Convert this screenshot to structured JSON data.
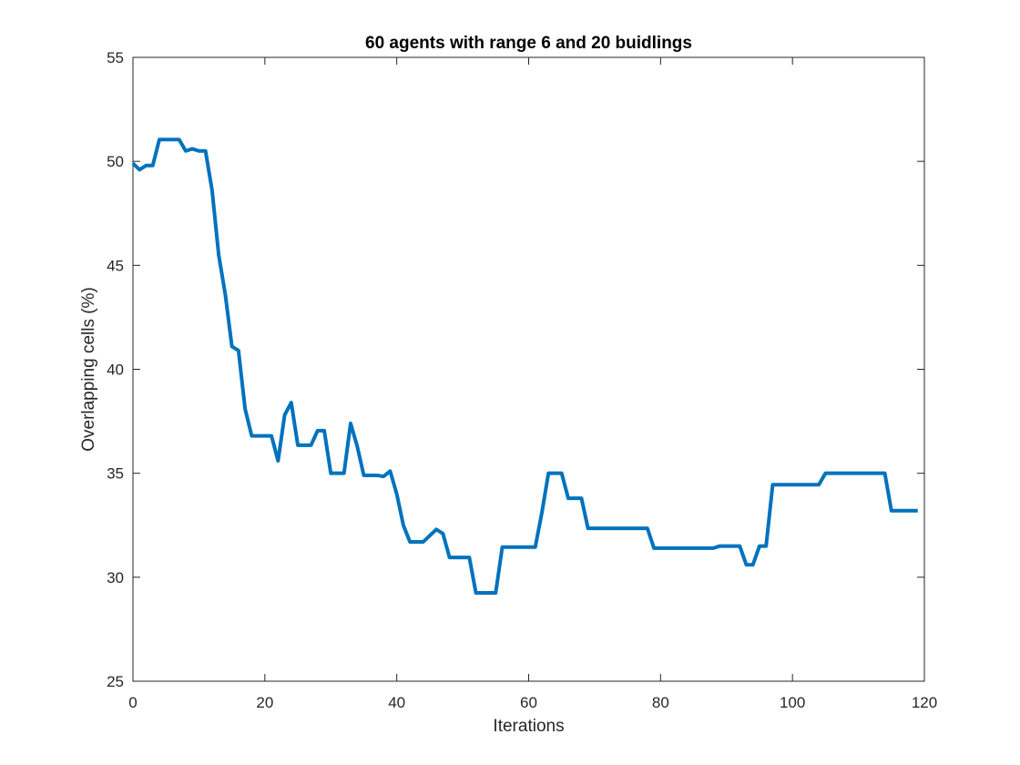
{
  "chart_data": {
    "type": "line",
    "title": "60 agents with range 6 and 20 buidlings",
    "xlabel": "Iterations",
    "ylabel": "Overlapping cells (%)",
    "xlim": [
      0,
      120
    ],
    "ylim": [
      25,
      55
    ],
    "xticks": [
      0,
      20,
      40,
      60,
      80,
      100,
      120
    ],
    "yticks": [
      25,
      30,
      35,
      40,
      45,
      50,
      55
    ],
    "grid": false,
    "legend": false,
    "series": [
      {
        "color": "#0072BD",
        "x": [
          0,
          1,
          2,
          3,
          4,
          5,
          6,
          7,
          8,
          9,
          10,
          11,
          12,
          13,
          14,
          15,
          16,
          17,
          18,
          19,
          20,
          21,
          22,
          23,
          24,
          25,
          26,
          27,
          28,
          29,
          30,
          31,
          32,
          33,
          34,
          35,
          36,
          37,
          38,
          39,
          40,
          41,
          42,
          43,
          44,
          45,
          46,
          47,
          48,
          49,
          50,
          51,
          52,
          53,
          54,
          55,
          56,
          57,
          58,
          59,
          60,
          61,
          62,
          63,
          64,
          65,
          66,
          67,
          68,
          69,
          70,
          71,
          72,
          73,
          74,
          75,
          76,
          77,
          78,
          79,
          80,
          81,
          82,
          83,
          84,
          85,
          86,
          87,
          88,
          89,
          90,
          91,
          92,
          93,
          94,
          95,
          96,
          97,
          98,
          99,
          100,
          101,
          102,
          103,
          104,
          105,
          106,
          107,
          108,
          109,
          110,
          111,
          112,
          113,
          114,
          115,
          116,
          117,
          118,
          119
        ],
        "y": [
          49.9,
          49.6,
          49.8,
          49.8,
          51.05,
          51.05,
          51.05,
          51.05,
          50.5,
          50.6,
          50.5,
          50.5,
          48.6,
          45.5,
          43.6,
          41.1,
          40.9,
          38.1,
          36.8,
          36.8,
          36.8,
          36.8,
          35.6,
          37.8,
          38.4,
          36.35,
          36.35,
          36.35,
          37.05,
          37.05,
          35.0,
          35.0,
          35.0,
          37.4,
          36.3,
          34.9,
          34.9,
          34.9,
          34.85,
          35.1,
          34.0,
          32.5,
          31.7,
          31.7,
          31.7,
          32.0,
          32.3,
          32.1,
          30.95,
          30.95,
          30.95,
          30.95,
          29.25,
          29.25,
          29.25,
          29.25,
          31.45,
          31.45,
          31.45,
          31.45,
          31.45,
          31.45,
          33.1,
          35.0,
          35.0,
          35.0,
          33.8,
          33.8,
          33.8,
          32.35,
          32.35,
          32.35,
          32.35,
          32.35,
          32.35,
          32.35,
          32.35,
          32.35,
          32.35,
          31.4,
          31.4,
          31.4,
          31.4,
          31.4,
          31.4,
          31.4,
          31.4,
          31.4,
          31.4,
          31.5,
          31.5,
          31.5,
          31.5,
          30.6,
          30.6,
          31.5,
          31.5,
          34.45,
          34.45,
          34.45,
          34.45,
          34.45,
          34.45,
          34.45,
          34.45,
          35.0,
          35.0,
          35.0,
          35.0,
          35.0,
          35.0,
          35.0,
          35.0,
          35.0,
          35.0,
          33.2,
          33.2,
          33.2,
          33.2,
          33.2
        ]
      }
    ]
  }
}
